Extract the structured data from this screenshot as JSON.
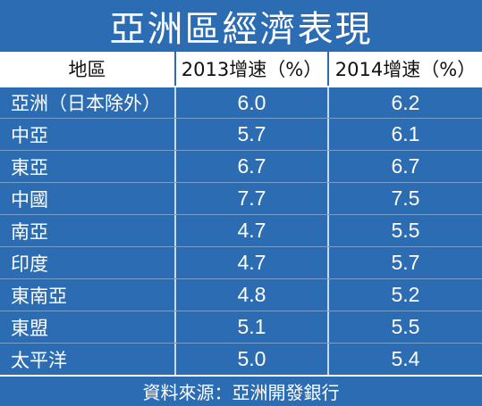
{
  "chart_data": {
    "type": "table",
    "title": "亞洲區經濟表現",
    "columns": [
      "地區",
      "2013增速（%）",
      "2014增速（%）"
    ],
    "rows": [
      {
        "region": "亞洲（日本除外）",
        "y2013": "6.0",
        "y2014": "6.2"
      },
      {
        "region": "中亞",
        "y2013": "5.7",
        "y2014": "6.1"
      },
      {
        "region": "東亞",
        "y2013": "6.7",
        "y2014": "6.7"
      },
      {
        "region": "中國",
        "y2013": "7.7",
        "y2014": "7.5"
      },
      {
        "region": "南亞",
        "y2013": "4.7",
        "y2014": "5.5"
      },
      {
        "region": "印度",
        "y2013": "4.7",
        "y2014": "5.7"
      },
      {
        "region": "東南亞",
        "y2013": "4.8",
        "y2014": "5.2"
      },
      {
        "region": "東盟",
        "y2013": "5.1",
        "y2014": "5.5"
      },
      {
        "region": "太平洋",
        "y2013": "5.0",
        "y2014": "5.4"
      }
    ],
    "source": "資料來源：亞洲開發銀行",
    "colors": {
      "background": "#2b6cb3",
      "header_bg": "#ffffff",
      "header_text": "#111111",
      "text": "#ffffff"
    }
  }
}
